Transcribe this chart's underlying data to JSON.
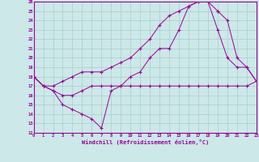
{
  "xlabel": "Windchill (Refroidissement éolien,°C)",
  "bg_color": "#cce8e8",
  "grid_color": "#aacccc",
  "line_color": "#990099",
  "xmin": 0,
  "xmax": 23,
  "ymin": 12,
  "ymax": 26,
  "line1_x": [
    0,
    1,
    2,
    3,
    4,
    5,
    6,
    7,
    8,
    9,
    10,
    11,
    12,
    13,
    14,
    15,
    16,
    17,
    18,
    19
  ],
  "line1_y": [
    18,
    17,
    17,
    17.5,
    18,
    18.5,
    18.5,
    18.5,
    19,
    19.5,
    20,
    21,
    22,
    23.5,
    24.5,
    25,
    25.5,
    26,
    26,
    25
  ],
  "line2_x": [
    0,
    1,
    2,
    3,
    4,
    5,
    6,
    7,
    8,
    9,
    10,
    11,
    12,
    13,
    14,
    15,
    16,
    17,
    18,
    19,
    20,
    21,
    22,
    23
  ],
  "line2_y": [
    18,
    17,
    16.5,
    16,
    16,
    16.5,
    17,
    17,
    17,
    17,
    17,
    17,
    17,
    17,
    17,
    17,
    17,
    17,
    17,
    17,
    17,
    17,
    17,
    17.5
  ],
  "line3_x": [
    0,
    1,
    2,
    3,
    4,
    5,
    6,
    7,
    8,
    9,
    10,
    11,
    12,
    13,
    14,
    15,
    16,
    17,
    18,
    19,
    20,
    21,
    22,
    23
  ],
  "line3_y": [
    18,
    17,
    16.5,
    15,
    14.5,
    14,
    13.5,
    12.5,
    16.5,
    17,
    18,
    18.5,
    20,
    21,
    21,
    23,
    25.5,
    26,
    26,
    23,
    20,
    19,
    19,
    17.5
  ],
  "line4_x": [
    19,
    20,
    21,
    22,
    23
  ],
  "line4_y": [
    25,
    24,
    20,
    19,
    17.5
  ]
}
